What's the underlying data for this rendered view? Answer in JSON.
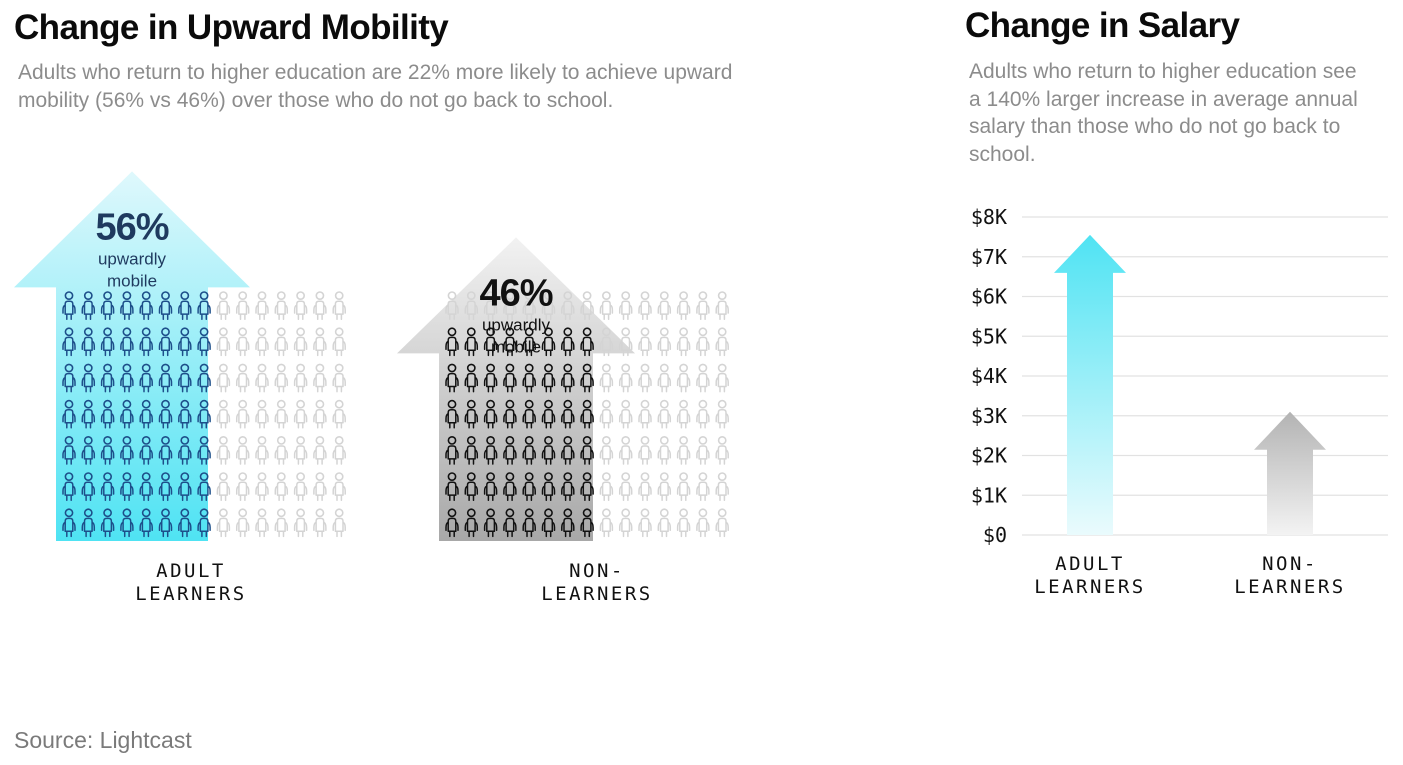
{
  "mobility": {
    "title": "Change in Upward Mobility",
    "subtitle": "Adults who return to higher education are 22% more likely to achieve upward mobility (56% vs 46%) over those who do not go back to school."
  },
  "salary": {
    "title": "Change in Salary",
    "subtitle": "Adults who return to higher education see a 140% larger increase in average annual salary than those who do not go back to school."
  },
  "source": "Source: Lightcast",
  "colors": {
    "adult_accent": "#4fe3f3",
    "adult_text": "#1f3a5f",
    "non_accent": "#a8a8a8",
    "grid": "#e2e2e2"
  },
  "chart_data": [
    {
      "type": "bar",
      "title": "Change in Upward Mobility",
      "categories": [
        "ADULT LEARNERS",
        "NON-LEARNERS"
      ],
      "category_lines": [
        [
          "ADULT",
          "LEARNERS"
        ],
        [
          "NON-",
          "LEARNERS"
        ]
      ],
      "values": [
        56,
        46
      ],
      "value_labels": [
        "56%",
        "46%"
      ],
      "value_caption": [
        "upwardly",
        "mobile"
      ],
      "unit": "%",
      "icon": "person-icon"
    },
    {
      "type": "bar",
      "title": "Change in Salary",
      "categories": [
        "ADULT LEARNERS",
        "NON-LEARNERS"
      ],
      "category_lines": [
        [
          "ADULT",
          "LEARNERS"
        ],
        [
          "NON-",
          "LEARNERS"
        ]
      ],
      "values": [
        7550,
        3100
      ],
      "ylim": [
        0,
        8000
      ],
      "yticks": [
        0,
        1000,
        2000,
        3000,
        4000,
        5000,
        6000,
        7000,
        8000
      ],
      "ytick_labels": [
        "$0",
        "$1K",
        "$2K",
        "$3K",
        "$4K",
        "$5K",
        "$6K",
        "$7K",
        "$8K"
      ],
      "grid": true
    }
  ]
}
